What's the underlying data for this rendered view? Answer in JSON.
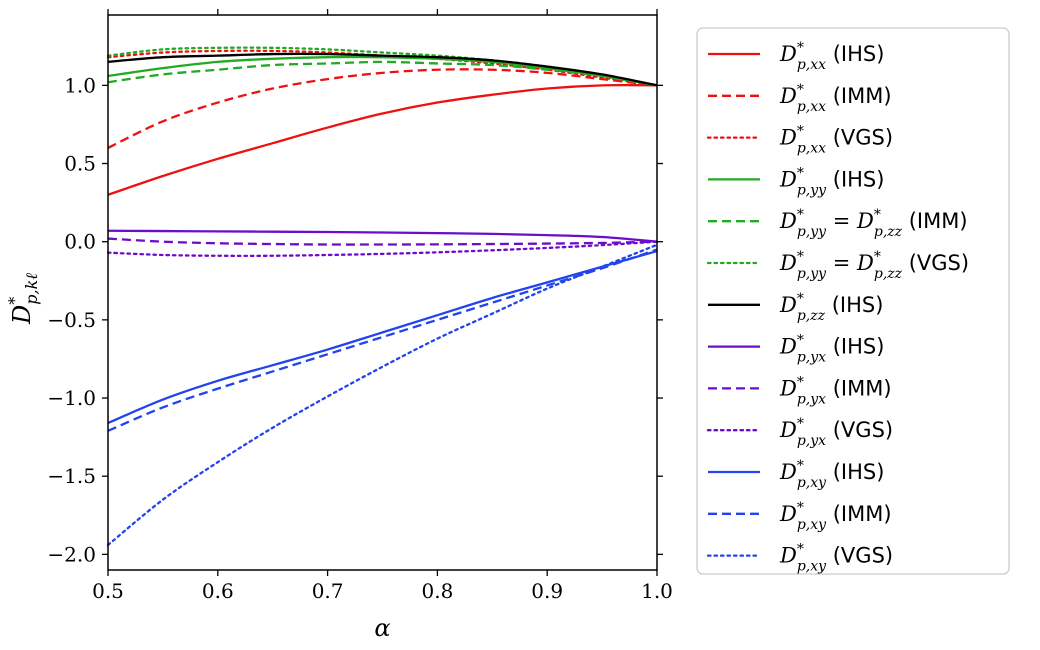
{
  "chart_data": {
    "type": "line",
    "xlabel": "α",
    "ylabel_main": "D",
    "ylabel_sup": "*",
    "ylabel_sub": "p,kℓ",
    "xlim": [
      0.5,
      1.0
    ],
    "ylim": [
      -2.1,
      1.45
    ],
    "xticks": [
      0.5,
      0.6,
      0.7,
      0.8,
      0.9,
      1.0
    ],
    "xtick_labels": [
      "0.5",
      "0.6",
      "0.7",
      "0.8",
      "0.9",
      "1.0"
    ],
    "yticks": [
      -2.0,
      -1.5,
      -1.0,
      -0.5,
      0.0,
      0.5,
      1.0
    ],
    "ytick_labels": [
      "−2.0",
      "−1.5",
      "−1.0",
      "−0.5",
      "0.0",
      "0.5",
      "1.0"
    ],
    "grid": false,
    "legend_position": "outside-right",
    "x": [
      0.5,
      0.55,
      0.6,
      0.65,
      0.7,
      0.75,
      0.8,
      0.85,
      0.9,
      0.95,
      1.0
    ],
    "series": [
      {
        "name": "xx-IHS",
        "sub": "p,xx",
        "extra": "",
        "method": "(IHS)",
        "color": "#ee1111",
        "style": "solid",
        "values": [
          0.3,
          0.42,
          0.53,
          0.63,
          0.73,
          0.82,
          0.89,
          0.94,
          0.98,
          1.0,
          1.0
        ]
      },
      {
        "name": "xx-IMM",
        "sub": "p,xx",
        "extra": "",
        "method": "(IMM)",
        "color": "#ee1111",
        "style": "dashed",
        "values": [
          0.6,
          0.77,
          0.89,
          0.98,
          1.04,
          1.08,
          1.1,
          1.1,
          1.08,
          1.04,
          1.0
        ]
      },
      {
        "name": "xx-VGS",
        "sub": "p,xx",
        "extra": "",
        "method": "(VGS)",
        "color": "#ee1111",
        "style": "dotted",
        "values": [
          1.18,
          1.21,
          1.22,
          1.22,
          1.21,
          1.19,
          1.17,
          1.14,
          1.1,
          1.05,
          1.0
        ]
      },
      {
        "name": "yy-IHS",
        "sub": "p,yy",
        "extra": "",
        "method": "(IHS)",
        "color": "#22aa22",
        "style": "solid",
        "values": [
          1.06,
          1.11,
          1.15,
          1.17,
          1.18,
          1.18,
          1.17,
          1.15,
          1.11,
          1.06,
          1.0
        ]
      },
      {
        "name": "yy=zz-IMM",
        "sub": "p,yy",
        "extra": "zz",
        "method": "(IMM)",
        "color": "#22aa22",
        "style": "dashed",
        "values": [
          1.02,
          1.07,
          1.1,
          1.13,
          1.14,
          1.15,
          1.14,
          1.13,
          1.1,
          1.06,
          1.0
        ]
      },
      {
        "name": "yy=zz-VGS",
        "sub": "p,yy",
        "extra": "zz",
        "method": "(VGS)",
        "color": "#22aa22",
        "style": "dotted",
        "values": [
          1.19,
          1.23,
          1.24,
          1.24,
          1.23,
          1.21,
          1.19,
          1.16,
          1.12,
          1.06,
          1.0
        ]
      },
      {
        "name": "zz-IHS",
        "sub": "p,zz",
        "extra": "",
        "method": "(IHS)",
        "color": "#000000",
        "style": "solid",
        "values": [
          1.15,
          1.18,
          1.19,
          1.2,
          1.2,
          1.19,
          1.18,
          1.16,
          1.12,
          1.07,
          1.0
        ]
      },
      {
        "name": "yx-IHS",
        "sub": "p,yx",
        "extra": "",
        "method": "(IHS)",
        "color": "#6a0dcc",
        "style": "solid",
        "values": [
          0.07,
          0.068,
          0.066,
          0.064,
          0.062,
          0.059,
          0.055,
          0.05,
          0.042,
          0.03,
          0.0
        ]
      },
      {
        "name": "yx-IMM",
        "sub": "p,yx",
        "extra": "",
        "method": "(IMM)",
        "color": "#6a0dcc",
        "style": "dashed",
        "values": [
          0.02,
          0.0,
          -0.01,
          -0.015,
          -0.018,
          -0.018,
          -0.017,
          -0.015,
          -0.012,
          -0.008,
          0.0
        ]
      },
      {
        "name": "yx-VGS",
        "sub": "p,yx",
        "extra": "",
        "method": "(VGS)",
        "color": "#6a0dcc",
        "style": "dotted",
        "values": [
          -0.07,
          -0.085,
          -0.09,
          -0.09,
          -0.085,
          -0.078,
          -0.068,
          -0.055,
          -0.04,
          -0.022,
          0.0
        ]
      },
      {
        "name": "xy-IHS",
        "sub": "p,xy",
        "extra": "",
        "method": "(IHS)",
        "color": "#2244ee",
        "style": "solid",
        "values": [
          -1.16,
          -1.01,
          -0.89,
          -0.79,
          -0.69,
          -0.58,
          -0.47,
          -0.36,
          -0.26,
          -0.16,
          -0.06
        ]
      },
      {
        "name": "xy-IMM",
        "sub": "p,xy",
        "extra": "",
        "method": "(IMM)",
        "color": "#2244ee",
        "style": "dashed",
        "values": [
          -1.21,
          -1.06,
          -0.94,
          -0.83,
          -0.72,
          -0.61,
          -0.5,
          -0.39,
          -0.28,
          -0.17,
          -0.05
        ]
      },
      {
        "name": "xy-VGS",
        "sub": "p,xy",
        "extra": "",
        "method": "(VGS)",
        "color": "#2244ee",
        "style": "dotted",
        "values": [
          -1.94,
          -1.65,
          -1.41,
          -1.19,
          -0.99,
          -0.8,
          -0.62,
          -0.46,
          -0.3,
          -0.16,
          -0.02
        ]
      }
    ]
  }
}
